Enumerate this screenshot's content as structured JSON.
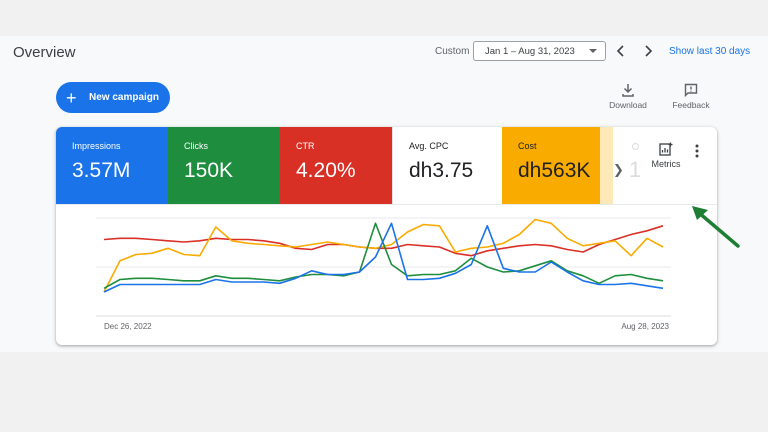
{
  "header": {
    "title": "Overview",
    "custom_label": "Custom",
    "date_range": "Jan 1 – Aug 31, 2023",
    "show_last": "Show last 30 days"
  },
  "actions": {
    "new_campaign": "New campaign",
    "download": "Download",
    "feedback": "Feedback"
  },
  "metrics": [
    {
      "label": "Impressions",
      "value": "3.57M"
    },
    {
      "label": "Clicks",
      "value": "150K"
    },
    {
      "label": "CTR",
      "value": "4.20%"
    },
    {
      "label": "Avg. CPC",
      "value": "dh3.75"
    },
    {
      "label": "Cost",
      "value": "dh563K"
    }
  ],
  "metrics_button": "Metrics",
  "colors": {
    "impressions": "#1a73e8",
    "clicks": "#1e8e3e",
    "ctr": "#d93025",
    "cost": "#f9ab00",
    "annotation": "#1e7e34"
  },
  "chart_data": {
    "type": "line",
    "x_start_label": "Dec 26, 2022",
    "x_end_label": "Aug 28, 2023",
    "n_points": 36,
    "series": [
      {
        "color": "#d93025",
        "values": [
          62,
          63,
          63,
          62,
          61,
          60,
          61,
          63,
          62,
          62,
          61,
          59,
          55,
          54,
          58,
          58,
          56,
          55,
          55,
          58,
          57,
          56,
          51,
          49,
          53,
          55,
          57,
          58,
          57,
          54,
          52,
          58,
          62,
          66,
          69,
          73
        ]
      },
      {
        "color": "#f9ab00",
        "values": [
          20,
          45,
          50,
          51,
          55,
          50,
          49,
          72,
          61,
          59,
          58,
          57,
          56,
          58,
          60,
          58,
          56,
          55,
          58,
          68,
          74,
          73,
          52,
          55,
          56,
          59,
          66,
          78,
          75,
          63,
          57,
          59,
          61,
          49,
          63,
          56
        ]
      },
      {
        "color": "#1e8e3e",
        "values": [
          23,
          30,
          31,
          31,
          30,
          29,
          29,
          33,
          31,
          31,
          30,
          29,
          32,
          34,
          34,
          33,
          36,
          75,
          42,
          33,
          34,
          34,
          37,
          47,
          40,
          36,
          37,
          41,
          45,
          37,
          33,
          27,
          33,
          34,
          31,
          29
        ]
      },
      {
        "color": "#1a73e8",
        "values": [
          20,
          26,
          26,
          26,
          26,
          26,
          26,
          30,
          28,
          28,
          28,
          27,
          31,
          37,
          34,
          34,
          36,
          48,
          75,
          30,
          30,
          31,
          35,
          42,
          73,
          39,
          36,
          36,
          44,
          36,
          29,
          26,
          26,
          27,
          25,
          23
        ]
      }
    ]
  }
}
